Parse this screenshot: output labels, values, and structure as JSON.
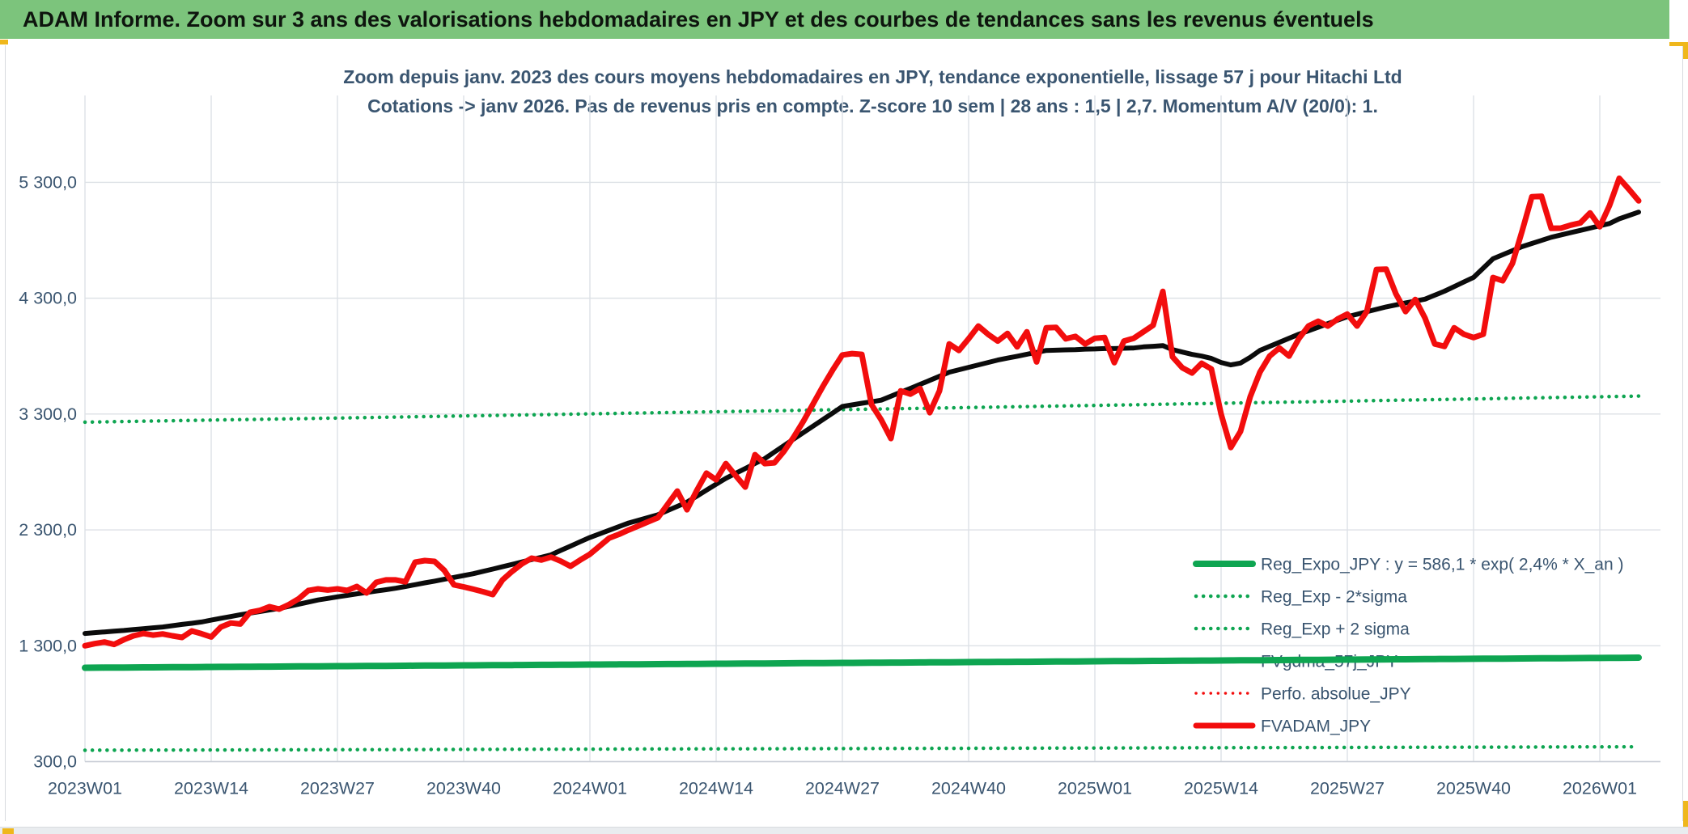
{
  "banner": {
    "title": "ADAM Informe. Zoom sur 3 ans des valorisations hebdomadaires en JPY et des courbes de tendances sans les revenus éventuels",
    "bg_color": "#7cc47c"
  },
  "chart": {
    "title_line1": "Zoom depuis janv. 2023 des cours moyens hebdomadaires en JPY, tendance exponentielle, lissage 57 j pour Hitachi Ltd",
    "title_line2": "Cotations -> janv 2026. Pas de revenus pris en compte. Z-score 10 sem | 28 ans : 1,5 | 2,7. Momentum A/V (20/0): 1.",
    "colors": {
      "accent_yellow": "#efb71c",
      "navy_text": "#3a5570",
      "gridline": "#dde1e6",
      "axis_line": "#c9ced6",
      "green": "#0ea551",
      "red": "#f20d0d",
      "black": "#0b0b0b"
    }
  },
  "chart_data": {
    "type": "line",
    "title": "Zoom depuis janv. 2023 des cours moyens hebdomadaires en JPY, tendance exponentielle, lissage 57 j pour Hitachi Ltd",
    "subtitle": "Cotations -> janv 2026. Pas de revenus pris en compte. Z-score 10 sem | 28 ans : 1,5 | 2,7. Momentum A/V (20/0): 1.",
    "x_unit": "ISO week (weekly points, week 0 = 2023W01)",
    "n_points": 161,
    "x_tick_labels": [
      "2023W01",
      "2023W14",
      "2023W27",
      "2023W40",
      "2024W01",
      "2024W14",
      "2024W27",
      "2024W40",
      "2025W01",
      "2025W14",
      "2025W27",
      "2025W40",
      "2026W01"
    ],
    "weeks_per_tick": 13,
    "y_tick_labels": [
      "5 300,0",
      "4 300,0",
      "3 300,0",
      "2 300,0",
      "1 300,0",
      "300,0"
    ],
    "y_tick_values": [
      5300,
      4300,
      3300,
      2300,
      1300,
      300
    ],
    "ylim": [
      300,
      6050
    ],
    "grid": true,
    "legend_position": "inside lower right, transparent",
    "series": [
      {
        "name": "Reg_Expo_JPY",
        "label": "Reg_Expo_JPY : y = 586,1 * exp( 2,4% *  X_an )",
        "style": "solid",
        "color": "#0ea551",
        "width": 8,
        "model": "exponential",
        "start": 1110,
        "end": 1197
      },
      {
        "name": "Reg_Exp - 2*sigma",
        "label": "Reg_Exp - 2*sigma",
        "style": "dotted",
        "color": "#0ea551",
        "width": 4.5,
        "model": "exponential",
        "start": 398,
        "end": 428
      },
      {
        "name": "Reg_Exp + 2 sigma",
        "label": "Reg_Exp + 2 sigma",
        "style": "dotted",
        "color": "#0ea551",
        "width": 4.5,
        "model": "exponential",
        "start": 3230,
        "end": 3455
      },
      {
        "name": "FVgdma_57j_JPY",
        "label": "FVgdma_57j_JPY",
        "style": "solid",
        "color": "#0b0b0b",
        "width": 6,
        "values": [
          1406,
          1413,
          1419,
          1426,
          1432,
          1440,
          1447,
          1455,
          1462,
          1473,
          1484,
          1494,
          1505,
          1521,
          1537,
          1552,
          1568,
          1582,
          1595,
          1609,
          1622,
          1640,
          1659,
          1677,
          1695,
          1708,
          1722,
          1735,
          1748,
          1760,
          1772,
          1784,
          1796,
          1812,
          1827,
          1843,
          1858,
          1874,
          1890,
          1906,
          1922,
          1942,
          1962,
          1982,
          2002,
          2023,
          2044,
          2064,
          2085,
          2123,
          2160,
          2198,
          2235,
          2266,
          2298,
          2329,
          2360,
          2383,
          2407,
          2430,
          2467,
          2503,
          2540,
          2591,
          2643,
          2694,
          2745,
          2788,
          2830,
          2873,
          2915,
          2972,
          3028,
          3085,
          3141,
          3197,
          3253,
          3309,
          3365,
          3379,
          3393,
          3406,
          3420,
          3454,
          3488,
          3522,
          3556,
          3591,
          3626,
          3661,
          3682,
          3703,
          3724,
          3745,
          3766,
          3783,
          3799,
          3816,
          3832,
          3849,
          3851,
          3854,
          3856,
          3860,
          3862,
          3865,
          3865,
          3868,
          3870,
          3880,
          3885,
          3891,
          3856,
          3835,
          3815,
          3800,
          3780,
          3745,
          3724,
          3740,
          3790,
          3849,
          3884,
          3919,
          3954,
          3989,
          4019,
          4049,
          4080,
          4110,
          4140,
          4161,
          4183,
          4204,
          4225,
          4242,
          4259,
          4275,
          4292,
          4326,
          4360,
          4400,
          4440,
          4480,
          4560,
          4640,
          4675,
          4710,
          4745,
          4772,
          4799,
          4826,
          4846,
          4866,
          4885,
          4905,
          4925,
          4945,
          4985,
          5014,
          5043
        ]
      },
      {
        "name": "Perfo. absolue_JPY",
        "label": "Perfo. absolue_JPY",
        "style": "dotted",
        "color": "#f20d0d",
        "width": 3.5,
        "coincident_with": "FVADAM_JPY",
        "note": "hidden beneath FVADAM_JPY in the plot"
      },
      {
        "name": "FVADAM_JPY",
        "label": "FVADAM_JPY",
        "style": "solid",
        "color": "#f20d0d",
        "width": 7,
        "values": [
          1300,
          1318,
          1332,
          1312,
          1352,
          1386,
          1406,
          1392,
          1402,
          1386,
          1372,
          1428,
          1404,
          1376,
          1462,
          1496,
          1488,
          1589,
          1605,
          1637,
          1616,
          1655,
          1705,
          1777,
          1791,
          1781,
          1791,
          1777,
          1812,
          1756,
          1847,
          1868,
          1868,
          1852,
          2021,
          2035,
          2028,
          1951,
          1826,
          1808,
          1788,
          1766,
          1742,
          1868,
          1942,
          2007,
          2056,
          2040,
          2065,
          2030,
          1986,
          2040,
          2090,
          2160,
          2230,
          2262,
          2300,
          2335,
          2370,
          2405,
          2520,
          2635,
          2474,
          2640,
          2790,
          2733,
          2872,
          2770,
          2670,
          2949,
          2872,
          2879,
          2980,
          3103,
          3240,
          3390,
          3540,
          3680,
          3810,
          3822,
          3815,
          3382,
          3250,
          3089,
          3500,
          3472,
          3520,
          3312,
          3500,
          3905,
          3849,
          3950,
          4059,
          3989,
          3930,
          3996,
          3880,
          4010,
          3750,
          4045,
          4048,
          3950,
          3970,
          3905,
          3954,
          3961,
          3744,
          3930,
          3954,
          4010,
          4066,
          4358,
          3793,
          3700,
          3654,
          3738,
          3689,
          3300,
          3011,
          3150,
          3450,
          3661,
          3800,
          3870,
          3800,
          3950,
          4060,
          4101,
          4059,
          4120,
          4163,
          4060,
          4184,
          4548,
          4550,
          4338,
          4184,
          4289,
          4129,
          3905,
          3884,
          4045,
          3989,
          3960,
          3989,
          4478,
          4450,
          4600,
          4880,
          5175,
          5180,
          4903,
          4905,
          4931,
          4950,
          5036,
          4917,
          5100,
          5335,
          5240,
          5140
        ]
      }
    ]
  }
}
